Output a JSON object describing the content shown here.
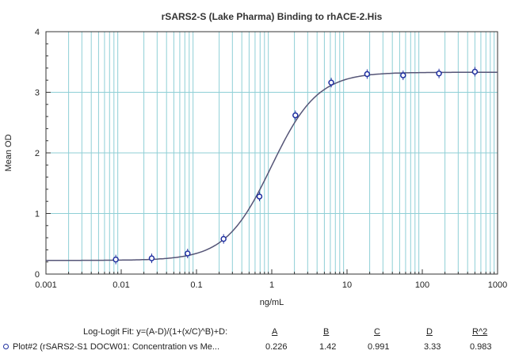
{
  "chart_data": {
    "type": "scatter",
    "title": "rSARS2-S (Lake Pharma) Binding to rhACE-2.His",
    "xlabel": "ng/mL",
    "ylabel": "Mean OD",
    "xscale": "log",
    "xlim": [
      0.001,
      1000
    ],
    "ylim": [
      0,
      4
    ],
    "xticks": [
      "0.001",
      "0.01",
      "0.1",
      "1",
      "10",
      "100",
      "1000"
    ],
    "yticks": [
      "0",
      "1",
      "2",
      "3",
      "4"
    ],
    "grid": true,
    "colors": {
      "grid": "#8fcfd6",
      "points": "#1f2fa0",
      "curve": "#555577"
    },
    "series": [
      {
        "name": "Plot#2 (rSARS2-S1 DOCW01: Concentration vs Me...",
        "x": [
          0.00847,
          0.0254,
          0.0762,
          0.229,
          0.686,
          2.06,
          6.17,
          18.5,
          55.6,
          166.7,
          500
        ],
        "y": [
          0.24,
          0.26,
          0.34,
          0.58,
          1.28,
          2.62,
          3.16,
          3.3,
          3.28,
          3.31,
          3.34
        ]
      }
    ],
    "fit": {
      "label": "Log-Logit Fit: y=(A-D)/(1+(x/C)^B)+D:",
      "headers": [
        "A",
        "B",
        "C",
        "D",
        "R^2"
      ],
      "values": [
        "0.226",
        "1.42",
        "0.991",
        "3.33",
        "0.983"
      ],
      "A": 0.226,
      "B": 1.42,
      "C": 0.991,
      "D": 3.33
    }
  }
}
